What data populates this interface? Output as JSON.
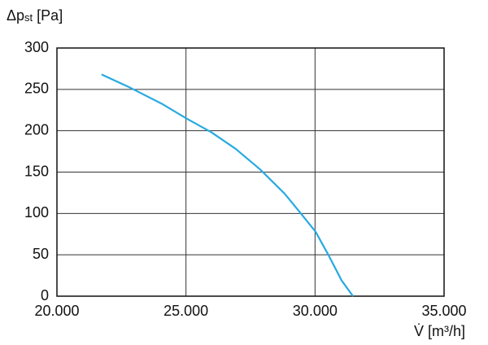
{
  "chart_data": {
    "type": "line",
    "y_label": "Δp",
    "y_label_sub": "st",
    "y_label_unit": "[Pa]",
    "x_label": "V̇ [m³/h]",
    "x": [
      21730,
      22840,
      24100,
      25010,
      25990,
      26930,
      27880,
      28820,
      29450,
      30020,
      30550,
      31030,
      31470
    ],
    "series": [
      {
        "color": "#27aae1",
        "values": [
          268,
          252,
          232,
          215,
          198,
          178,
          153,
          124,
          100,
          78,
          48,
          19,
          0
        ]
      }
    ],
    "xlim": [
      20000,
      35000
    ],
    "xticks": [
      {
        "value": 20000,
        "label": "20.000"
      },
      {
        "value": 25000,
        "label": "25.000"
      },
      {
        "value": 30000,
        "label": "30.000"
      },
      {
        "value": 35000,
        "label": "35.000"
      }
    ],
    "ylim": [
      0,
      300
    ],
    "yticks": [
      0,
      50,
      100,
      150,
      200,
      250,
      300
    ],
    "grid": true
  }
}
